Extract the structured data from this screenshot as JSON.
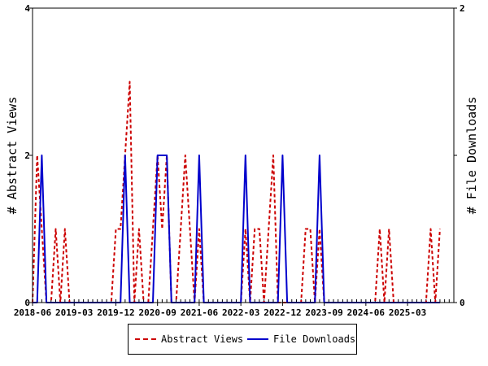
{
  "chart_data": {
    "type": "line",
    "x_tick_labels": [
      "2018-06",
      "2019-03",
      "2019-12",
      "2020-09",
      "2021-06",
      "2022-03",
      "2022-12",
      "2023-09",
      "2024-06",
      "2025-03"
    ],
    "x_range": [
      "2018-06",
      "2026-01"
    ],
    "y_left": {
      "label": "# Abstract Views",
      "range": [
        0,
        4
      ],
      "ticks": [
        "0",
        "2",
        "4"
      ]
    },
    "y_right": {
      "label": "# File Downloads",
      "range": [
        0,
        2
      ],
      "ticks": [
        "0",
        "1",
        "2"
      ]
    },
    "grid": false,
    "legend_position": "bottom",
    "series": [
      {
        "name": "Abstract Views",
        "axis": "left",
        "color": "#cc0000",
        "style": "dashed",
        "points": [
          [
            "2018-06",
            0
          ],
          [
            "2018-07",
            2
          ],
          [
            "2018-08",
            1
          ],
          [
            "2018-09",
            0
          ],
          [
            "2018-10",
            0
          ],
          [
            "2018-11",
            1
          ],
          [
            "2018-12",
            0
          ],
          [
            "2019-01",
            1
          ],
          [
            "2019-02",
            0
          ],
          [
            "2019-03",
            0
          ],
          [
            "2019-04",
            0
          ],
          [
            "2019-05",
            0
          ],
          [
            "2019-06",
            0
          ],
          [
            "2019-07",
            0
          ],
          [
            "2019-08",
            0
          ],
          [
            "2019-09",
            0
          ],
          [
            "2019-10",
            0
          ],
          [
            "2019-11",
            0
          ],
          [
            "2019-12",
            1
          ],
          [
            "2020-01",
            1
          ],
          [
            "2020-02",
            2
          ],
          [
            "2020-03",
            3
          ],
          [
            "2020-04",
            0
          ],
          [
            "2020-05",
            1
          ],
          [
            "2020-06",
            0
          ],
          [
            "2020-07",
            0
          ],
          [
            "2020-08",
            1
          ],
          [
            "2020-09",
            2
          ],
          [
            "2020-10",
            1
          ],
          [
            "2020-11",
            2
          ],
          [
            "2020-12",
            0
          ],
          [
            "2021-01",
            0
          ],
          [
            "2021-02",
            1
          ],
          [
            "2021-03",
            2
          ],
          [
            "2021-04",
            1
          ],
          [
            "2021-05",
            0
          ],
          [
            "2021-06",
            1
          ],
          [
            "2021-07",
            0
          ],
          [
            "2021-08",
            0
          ],
          [
            "2021-09",
            0
          ],
          [
            "2021-10",
            0
          ],
          [
            "2021-11",
            0
          ],
          [
            "2021-12",
            0
          ],
          [
            "2022-01",
            0
          ],
          [
            "2022-02",
            0
          ],
          [
            "2022-03",
            0
          ],
          [
            "2022-04",
            1
          ],
          [
            "2022-05",
            0
          ],
          [
            "2022-06",
            1
          ],
          [
            "2022-07",
            1
          ],
          [
            "2022-08",
            0
          ],
          [
            "2022-09",
            1
          ],
          [
            "2022-10",
            2
          ],
          [
            "2022-11",
            0
          ],
          [
            "2022-12",
            0
          ],
          [
            "2023-01",
            0
          ],
          [
            "2023-02",
            0
          ],
          [
            "2023-03",
            0
          ],
          [
            "2023-04",
            0
          ],
          [
            "2023-05",
            1
          ],
          [
            "2023-06",
            1
          ],
          [
            "2023-07",
            0
          ],
          [
            "2023-08",
            1
          ],
          [
            "2023-09",
            0
          ],
          [
            "2023-10",
            0
          ],
          [
            "2023-11",
            0
          ],
          [
            "2023-12",
            0
          ],
          [
            "2024-01",
            0
          ],
          [
            "2024-02",
            0
          ],
          [
            "2024-03",
            0
          ],
          [
            "2024-04",
            0
          ],
          [
            "2024-05",
            0
          ],
          [
            "2024-06",
            0
          ],
          [
            "2024-07",
            0
          ],
          [
            "2024-08",
            0
          ],
          [
            "2024-09",
            1
          ],
          [
            "2024-10",
            0
          ],
          [
            "2024-11",
            1
          ],
          [
            "2024-12",
            0
          ],
          [
            "2025-01",
            0
          ],
          [
            "2025-02",
            0
          ],
          [
            "2025-03",
            0
          ],
          [
            "2025-04",
            0
          ],
          [
            "2025-05",
            0
          ],
          [
            "2025-06",
            0
          ],
          [
            "2025-07",
            0
          ],
          [
            "2025-08",
            1
          ],
          [
            "2025-09",
            0
          ],
          [
            "2025-10",
            1
          ]
        ]
      },
      {
        "name": "File Downloads",
        "axis": "right",
        "color": "#0000cc",
        "style": "solid",
        "points": [
          [
            "2018-06",
            0
          ],
          [
            "2018-07",
            0
          ],
          [
            "2018-08",
            1
          ],
          [
            "2018-09",
            0
          ],
          [
            "2018-10",
            0
          ],
          [
            "2018-11",
            0
          ],
          [
            "2018-12",
            0
          ],
          [
            "2019-01",
            0
          ],
          [
            "2019-02",
            0
          ],
          [
            "2019-03",
            0
          ],
          [
            "2019-04",
            0
          ],
          [
            "2019-05",
            0
          ],
          [
            "2019-06",
            0
          ],
          [
            "2019-07",
            0
          ],
          [
            "2019-08",
            0
          ],
          [
            "2019-09",
            0
          ],
          [
            "2019-10",
            0
          ],
          [
            "2019-11",
            0
          ],
          [
            "2019-12",
            0
          ],
          [
            "2020-01",
            0
          ],
          [
            "2020-02",
            1
          ],
          [
            "2020-03",
            0
          ],
          [
            "2020-04",
            0
          ],
          [
            "2020-05",
            0
          ],
          [
            "2020-06",
            0
          ],
          [
            "2020-07",
            0
          ],
          [
            "2020-08",
            0
          ],
          [
            "2020-09",
            1
          ],
          [
            "2020-10",
            1
          ],
          [
            "2020-11",
            1
          ],
          [
            "2020-12",
            0
          ],
          [
            "2021-01",
            0
          ],
          [
            "2021-02",
            0
          ],
          [
            "2021-03",
            0
          ],
          [
            "2021-04",
            0
          ],
          [
            "2021-05",
            0
          ],
          [
            "2021-06",
            1
          ],
          [
            "2021-07",
            0
          ],
          [
            "2021-08",
            0
          ],
          [
            "2021-09",
            0
          ],
          [
            "2021-10",
            0
          ],
          [
            "2021-11",
            0
          ],
          [
            "2021-12",
            0
          ],
          [
            "2022-01",
            0
          ],
          [
            "2022-02",
            0
          ],
          [
            "2022-03",
            0
          ],
          [
            "2022-04",
            1
          ],
          [
            "2022-05",
            0
          ],
          [
            "2022-06",
            0
          ],
          [
            "2022-07",
            0
          ],
          [
            "2022-08",
            0
          ],
          [
            "2022-09",
            0
          ],
          [
            "2022-10",
            0
          ],
          [
            "2022-11",
            0
          ],
          [
            "2022-12",
            1
          ],
          [
            "2023-01",
            0
          ],
          [
            "2023-02",
            0
          ],
          [
            "2023-03",
            0
          ],
          [
            "2023-04",
            0
          ],
          [
            "2023-05",
            0
          ],
          [
            "2023-06",
            0
          ],
          [
            "2023-07",
            0
          ],
          [
            "2023-08",
            1
          ],
          [
            "2023-09",
            0
          ],
          [
            "2023-10",
            0
          ],
          [
            "2023-11",
            0
          ],
          [
            "2023-12",
            0
          ],
          [
            "2024-01",
            0
          ],
          [
            "2024-02",
            0
          ],
          [
            "2024-03",
            0
          ],
          [
            "2024-04",
            0
          ],
          [
            "2024-05",
            0
          ],
          [
            "2024-06",
            0
          ],
          [
            "2024-07",
            0
          ],
          [
            "2024-08",
            0
          ],
          [
            "2024-09",
            0
          ],
          [
            "2024-10",
            0
          ],
          [
            "2024-11",
            0
          ],
          [
            "2024-12",
            0
          ],
          [
            "2025-01",
            0
          ],
          [
            "2025-02",
            0
          ],
          [
            "2025-03",
            0
          ],
          [
            "2025-04",
            0
          ],
          [
            "2025-05",
            0
          ],
          [
            "2025-06",
            0
          ],
          [
            "2025-07",
            0
          ],
          [
            "2025-08",
            0
          ],
          [
            "2025-09",
            0
          ],
          [
            "2025-10",
            0
          ]
        ]
      }
    ]
  }
}
